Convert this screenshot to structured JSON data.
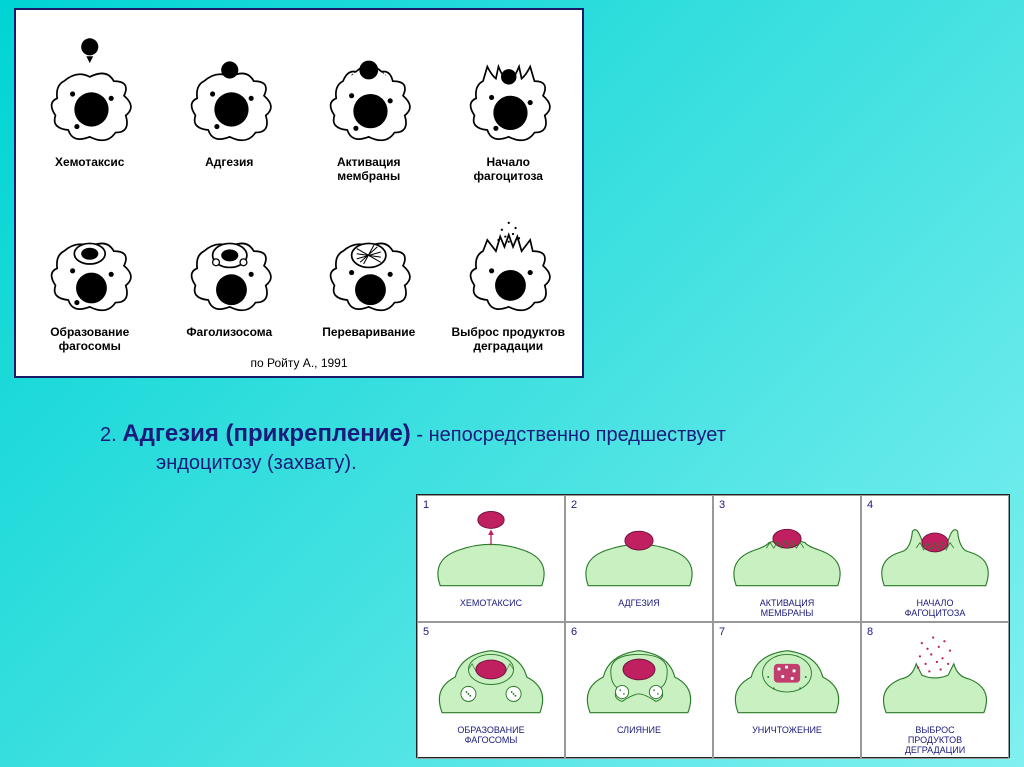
{
  "background_gradient": [
    "#00d4d4",
    "#40e0e0",
    "#80f0f0"
  ],
  "bw_diagram": {
    "border_color": "#1a1a6a",
    "bg": "#ffffff",
    "credit": "по Ройту А., 1991",
    "cells": [
      {
        "label": "Хемотаксис"
      },
      {
        "label": "Адгезия"
      },
      {
        "label": "Активация\nмембраны"
      },
      {
        "label": "Начало\nфагоцитоза"
      },
      {
        "label": "Образование\nфагосомы"
      },
      {
        "label": "Фаголизосома"
      },
      {
        "label": "Переваривание"
      },
      {
        "label": "Выброс продуктов\nдеградации"
      }
    ]
  },
  "text": {
    "num": "2.",
    "title": "Адгезия (прикрепление)",
    "rest": "- непосредственно предшествует",
    "sub": "эндоцитозу (захвату)."
  },
  "color_diagram": {
    "bg": "#ffffff",
    "border": "#222222",
    "cell_border": "#999999",
    "cell_fill": "#c8f0c0",
    "cell_stroke": "#2a7a2a",
    "particle_fill": "#c02060",
    "particle_stroke": "#701040",
    "lysosome_fill": "#ffffff",
    "lysosome_stroke": "#2a7a2a",
    "label_color": "#1a1a7a",
    "dots_color": "#c02060",
    "cells": [
      {
        "n": "1",
        "label": "ХЕМОТАКСИС"
      },
      {
        "n": "2",
        "label": "АДГЕЗИЯ"
      },
      {
        "n": "3",
        "label": "АКТИВАЦИЯ\nМЕМБРАНЫ"
      },
      {
        "n": "4",
        "label": "НАЧАЛО\nФАГОЦИТОЗА"
      },
      {
        "n": "5",
        "label": "ОБРАЗОВАНИЕ\nФАГОСОМЫ"
      },
      {
        "n": "6",
        "label": "СЛИЯНИЕ"
      },
      {
        "n": "7",
        "label": "УНИЧТОЖЕНИЕ"
      },
      {
        "n": "8",
        "label": "ВЫБРОС\nПРОДУКТОВ\nДЕГРАДАЦИИ"
      }
    ]
  }
}
